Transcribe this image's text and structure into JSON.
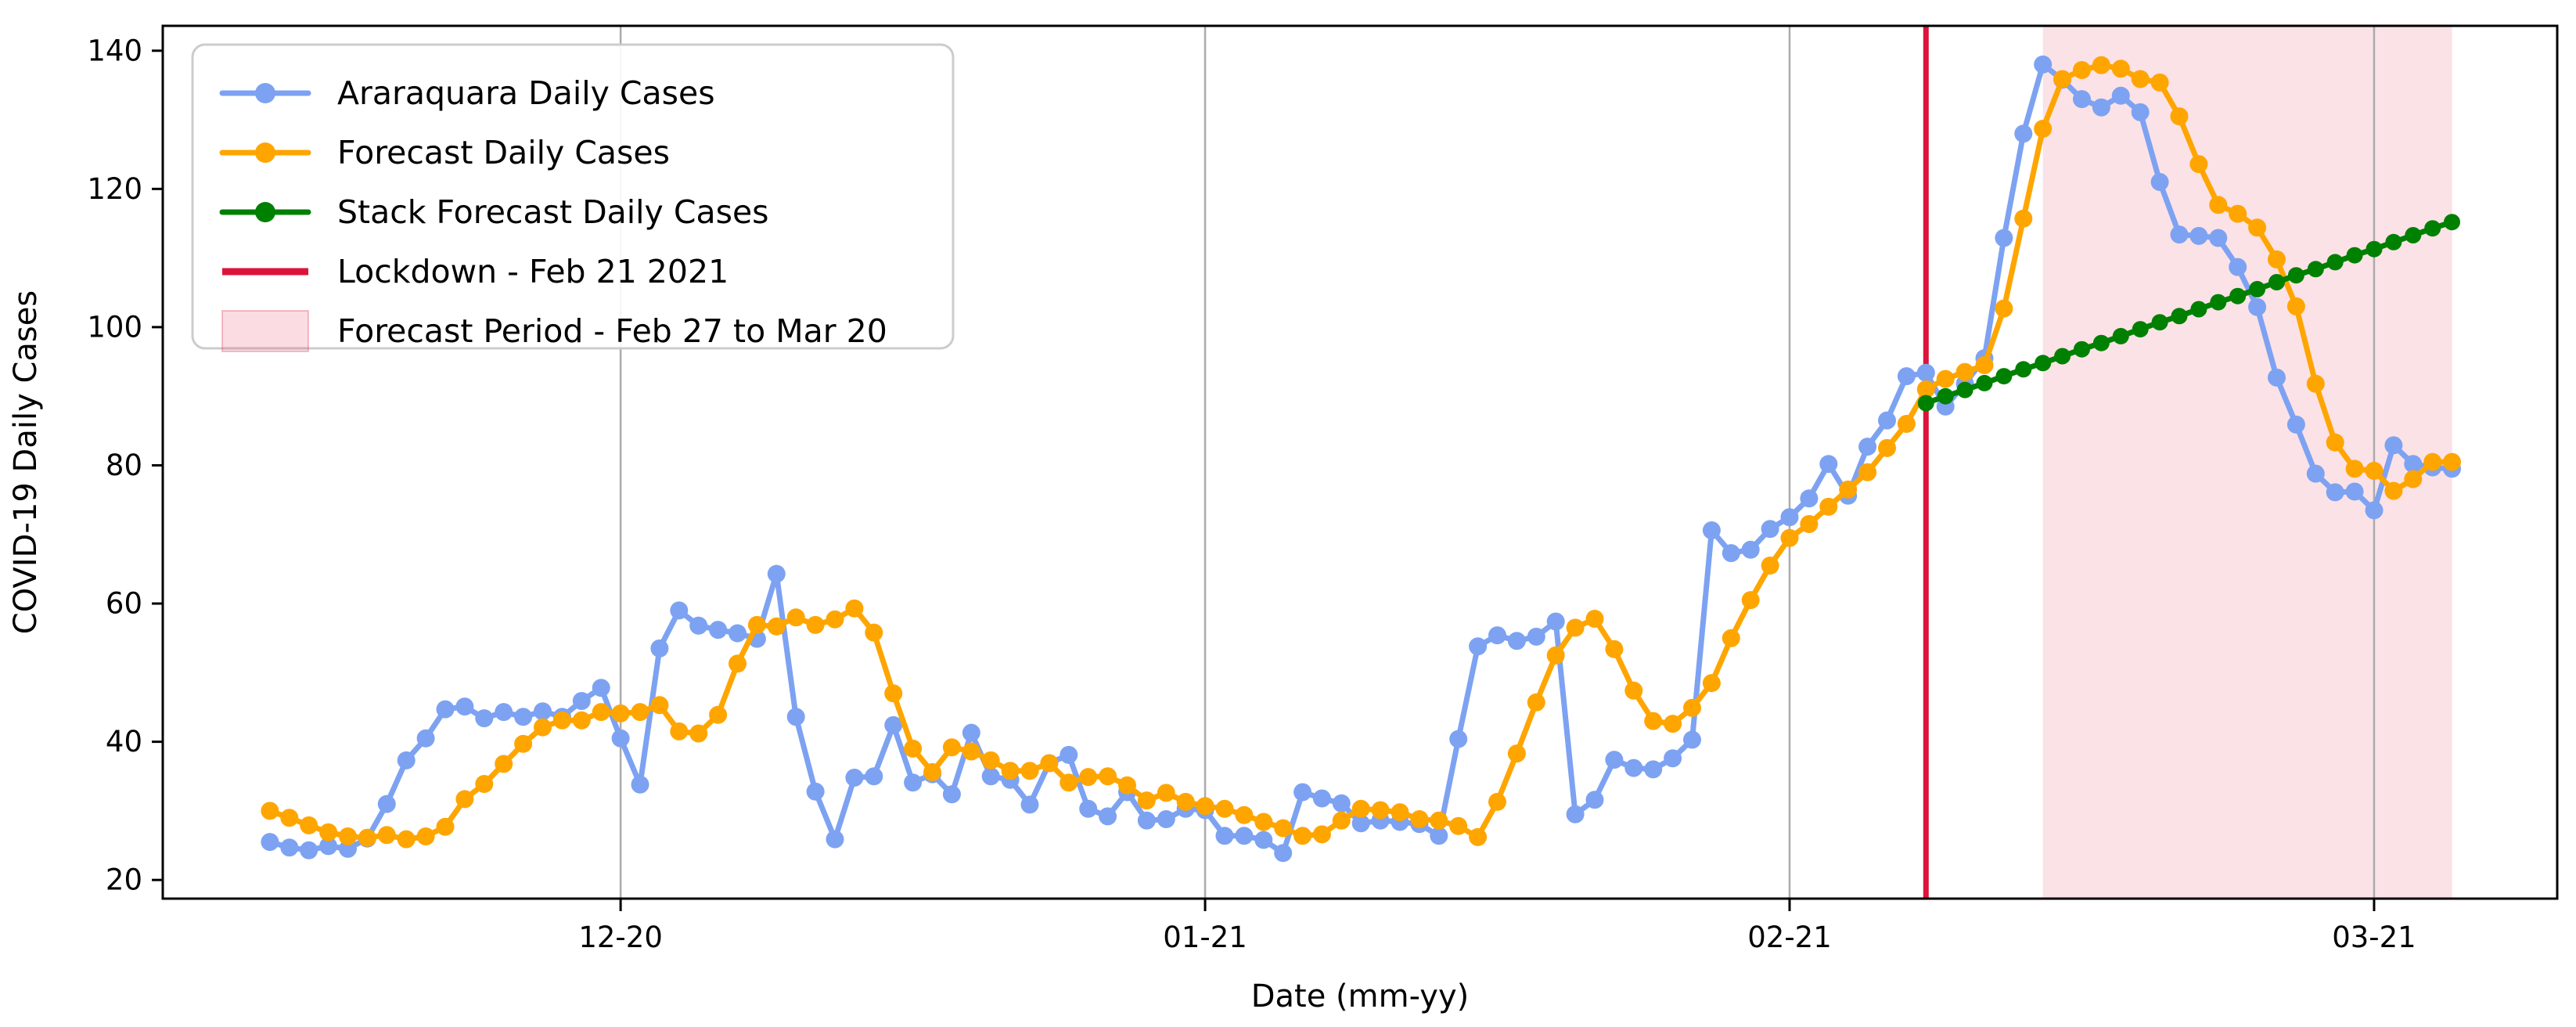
{
  "chart_data": {
    "type": "line",
    "title": "",
    "xlabel": "Date (mm-yy)",
    "ylabel": "COVID-19 Daily Cases",
    "ylim": [
      17.3,
      143.6
    ],
    "xlim_days": [
      -5.5,
      117.4
    ],
    "y_ticks": [
      20,
      40,
      60,
      80,
      100,
      120,
      140
    ],
    "x_ticks": [
      {
        "day": 18,
        "label": "12-20"
      },
      {
        "day": 48,
        "label": "01-21"
      },
      {
        "day": 78,
        "label": "02-21"
      },
      {
        "day": 108,
        "label": "03-21"
      }
    ],
    "grid": "vertical-only",
    "grid_color": "#ababab",
    "legend_position": "upper-left",
    "axis_color": "#000000",
    "series": [
      {
        "name": "Araraquara Daily Cases",
        "color": "#7DA2F2",
        "marker": "circle",
        "start_day": 0,
        "values": [
          25.5,
          24.7,
          24.3,
          24.9,
          24.5,
          26.0,
          31.0,
          37.3,
          40.5,
          44.7,
          45.1,
          43.4,
          44.3,
          43.6,
          44.4,
          43.6,
          45.9,
          47.8,
          40.5,
          33.8,
          53.5,
          59.0,
          56.8,
          56.2,
          55.7,
          54.9,
          64.3,
          43.6,
          32.8,
          25.9,
          34.8,
          35.0,
          42.4,
          34.1,
          35.3,
          32.4,
          41.3,
          35.0,
          34.5,
          30.9,
          36.9,
          38.1,
          30.3,
          29.2,
          32.7,
          28.6,
          28.8,
          30.3,
          30.1,
          26.4,
          26.4,
          25.8,
          23.9,
          32.7,
          31.8,
          31.1,
          28.2,
          28.6,
          28.4,
          28.1,
          26.4,
          40.4,
          53.8,
          55.4,
          54.6,
          55.2,
          57.4,
          29.5,
          31.6,
          37.4,
          36.2,
          36.0,
          37.6,
          40.3,
          70.6,
          67.3,
          67.8,
          70.8,
          72.5,
          75.2,
          80.2,
          75.6,
          82.7,
          86.5,
          92.9,
          93.4,
          88.5,
          91.8,
          95.5,
          112.9,
          128.0,
          138.0,
          135.8,
          133.0,
          131.8,
          133.5,
          131.1,
          121.0,
          113.4,
          113.2,
          112.9,
          108.7,
          102.9,
          92.7,
          85.9,
          78.8,
          76.1,
          76.2,
          73.5,
          82.9,
          80.2,
          79.7,
          79.5
        ]
      },
      {
        "name": "Forecast Daily Cases",
        "color": "#FFA500",
        "marker": "circle",
        "start_day": 0,
        "values": [
          30.0,
          29.0,
          27.9,
          26.9,
          26.3,
          26.1,
          26.5,
          25.9,
          26.3,
          27.7,
          31.7,
          33.9,
          36.8,
          39.7,
          42.1,
          43.1,
          43.1,
          44.3,
          44.1,
          44.3,
          45.3,
          41.5,
          41.2,
          43.9,
          51.3,
          56.9,
          56.7,
          58.0,
          56.9,
          57.7,
          59.3,
          55.8,
          47.0,
          39.0,
          35.6,
          39.2,
          38.6,
          37.3,
          35.8,
          35.8,
          36.9,
          34.1,
          34.9,
          35.0,
          33.7,
          31.5,
          32.6,
          31.3,
          30.7,
          30.3,
          29.4,
          28.4,
          27.5,
          26.4,
          26.6,
          28.6,
          30.3,
          30.1,
          29.8,
          28.8,
          28.6,
          27.8,
          26.2,
          31.3,
          38.3,
          45.7,
          52.5,
          56.5,
          57.8,
          53.4,
          47.4,
          43.0,
          42.6,
          44.9,
          48.5,
          55.0,
          60.5,
          65.5,
          69.5,
          71.5,
          74.0,
          76.5,
          79.0,
          82.5,
          86.0,
          91.0,
          92.5,
          93.5,
          94.5,
          102.7,
          115.7,
          128.7,
          135.9,
          137.2,
          137.9,
          137.4,
          135.9,
          135.4,
          130.5,
          123.6,
          117.7,
          116.4,
          114.4,
          109.8,
          103.0,
          91.8,
          83.3,
          79.5,
          79.2,
          76.3,
          78.0,
          80.5,
          80.5
        ]
      },
      {
        "name": "Stack Forecast Daily Cases",
        "color": "#008000",
        "marker": "circle",
        "start_day": 85,
        "values": [
          89.0,
          90.0,
          90.9,
          91.9,
          92.9,
          93.9,
          94.8,
          95.8,
          96.8,
          97.7,
          98.7,
          99.7,
          100.7,
          101.6,
          102.6,
          103.6,
          104.5,
          105.5,
          106.5,
          107.5,
          108.4,
          109.4,
          110.4,
          111.3,
          112.3,
          113.3,
          114.3,
          115.2
        ]
      }
    ],
    "lockdown_line": {
      "day": 85,
      "label": "Lockdown - Feb 21 2021",
      "color": "#DC143C"
    },
    "forecast_period": {
      "start_day": 91,
      "end_day": 112,
      "label": "Forecast Period - Feb 27 to Mar 20",
      "fill": "rgba(220,20,60,0.12)"
    },
    "legend_entries": [
      {
        "label": "Araraquara Daily Cases",
        "swatch": "line-marker",
        "color": "#7DA2F2"
      },
      {
        "label": "Forecast Daily Cases",
        "swatch": "line-marker",
        "color": "#FFA500"
      },
      {
        "label": "Stack Forecast Daily Cases",
        "swatch": "line-marker",
        "color": "#008000"
      },
      {
        "label": "Lockdown - Feb 21 2021",
        "swatch": "thick-line",
        "color": "#DC143C"
      },
      {
        "label": "Forecast Period - Feb 27 to Mar 20",
        "swatch": "patch",
        "color": "rgba(220,20,60,0.15)"
      }
    ]
  }
}
